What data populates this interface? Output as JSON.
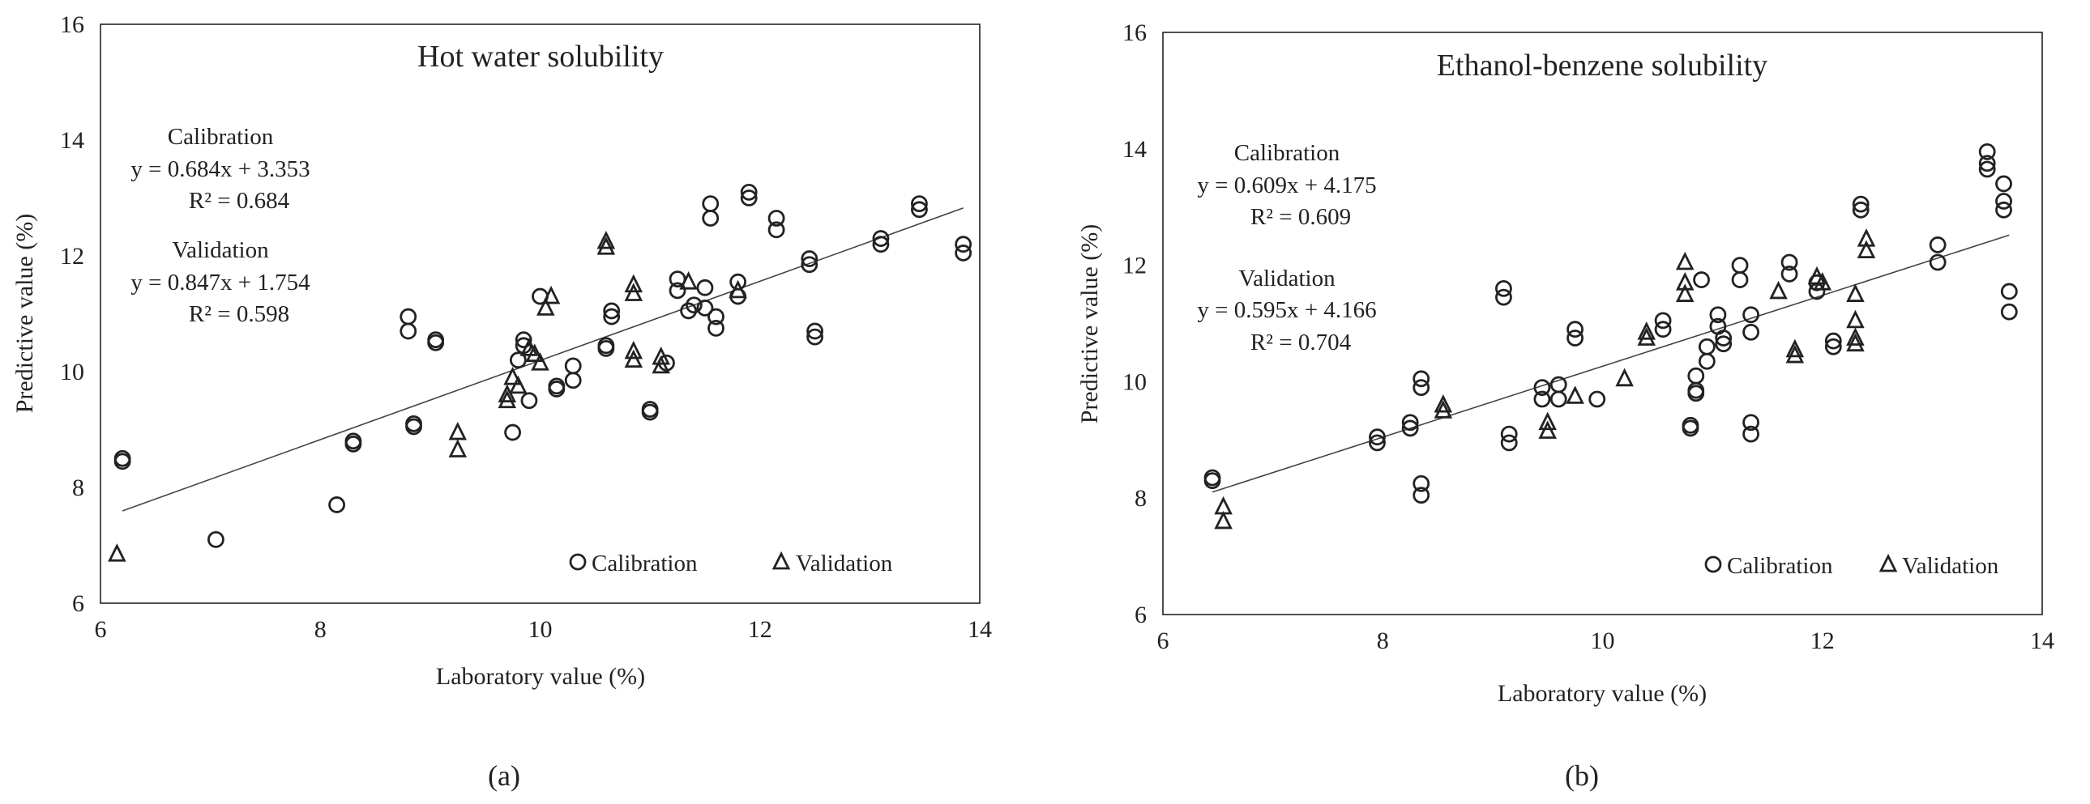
{
  "figure_labels": [
    "(a)",
    "(b)"
  ],
  "chart_data": [
    {
      "type": "scatter",
      "title": "Hot water solubility",
      "xlabel": "Laboratory value (%)",
      "ylabel": "Predictive value (%)",
      "xlim": [
        6,
        14
      ],
      "ylim": [
        6,
        16
      ],
      "xticks": [
        6,
        8,
        10,
        12,
        14
      ],
      "yticks": [
        6,
        8,
        10,
        12,
        14,
        16
      ],
      "legend": {
        "position": "bottom-right",
        "entries": [
          "Calibration",
          "Validation"
        ]
      },
      "annotations": {
        "calibration": [
          "Calibration",
          "y = 0.684x + 3.353",
          "R² = 0.684"
        ],
        "validation": [
          "Validation",
          "y = 0.847x + 1.754",
          "R² = 0.598"
        ]
      },
      "trendline": {
        "slope": 0.684,
        "intercept": 3.353,
        "x_range": [
          6.2,
          13.85
        ]
      },
      "series": [
        {
          "name": "Calibration",
          "marker": "circle",
          "points": [
            [
              6.2,
              8.45
            ],
            [
              6.2,
              8.5
            ],
            [
              7.05,
              7.1
            ],
            [
              8.15,
              7.7
            ],
            [
              8.3,
              8.8
            ],
            [
              8.3,
              8.75
            ],
            [
              8.8,
              10.95
            ],
            [
              8.8,
              10.7
            ],
            [
              8.85,
              9.1
            ],
            [
              8.85,
              9.05
            ],
            [
              9.05,
              10.55
            ],
            [
              9.05,
              10.5
            ],
            [
              9.75,
              8.95
            ],
            [
              9.8,
              10.2
            ],
            [
              9.85,
              10.55
            ],
            [
              9.85,
              10.45
            ],
            [
              9.9,
              9.5
            ],
            [
              10.0,
              11.3
            ],
            [
              10.15,
              9.75
            ],
            [
              10.15,
              9.7
            ],
            [
              10.3,
              10.1
            ],
            [
              10.3,
              9.85
            ],
            [
              10.6,
              10.45
            ],
            [
              10.6,
              10.4
            ],
            [
              10.65,
              11.05
            ],
            [
              10.65,
              10.95
            ],
            [
              11.0,
              9.35
            ],
            [
              11.0,
              9.3
            ],
            [
              11.15,
              10.15
            ],
            [
              11.25,
              11.6
            ],
            [
              11.25,
              11.4
            ],
            [
              11.35,
              11.05
            ],
            [
              11.4,
              11.15
            ],
            [
              11.5,
              11.1
            ],
            [
              11.5,
              11.45
            ],
            [
              11.55,
              12.9
            ],
            [
              11.55,
              12.65
            ],
            [
              11.6,
              10.95
            ],
            [
              11.6,
              10.75
            ],
            [
              11.8,
              11.55
            ],
            [
              11.8,
              11.3
            ],
            [
              11.9,
              13.1
            ],
            [
              11.9,
              13.0
            ],
            [
              12.15,
              12.65
            ],
            [
              12.15,
              12.45
            ],
            [
              12.45,
              11.95
            ],
            [
              12.45,
              11.85
            ],
            [
              12.5,
              10.7
            ],
            [
              12.5,
              10.6
            ],
            [
              13.1,
              12.3
            ],
            [
              13.1,
              12.2
            ],
            [
              13.45,
              12.9
            ],
            [
              13.45,
              12.8
            ],
            [
              13.85,
              12.2
            ],
            [
              13.85,
              12.05
            ]
          ]
        },
        {
          "name": "Validation",
          "marker": "triangle",
          "points": [
            [
              6.15,
              6.85
            ],
            [
              9.25,
              8.95
            ],
            [
              9.25,
              8.65
            ],
            [
              9.7,
              9.6
            ],
            [
              9.7,
              9.5
            ],
            [
              9.75,
              9.9
            ],
            [
              9.8,
              9.75
            ],
            [
              9.9,
              10.4
            ],
            [
              9.95,
              10.3
            ],
            [
              10.0,
              10.15
            ],
            [
              10.05,
              11.1
            ],
            [
              10.1,
              11.3
            ],
            [
              10.6,
              12.25
            ],
            [
              10.6,
              12.15
            ],
            [
              10.85,
              11.5
            ],
            [
              10.85,
              11.35
            ],
            [
              10.85,
              10.35
            ],
            [
              10.85,
              10.2
            ],
            [
              11.1,
              10.25
            ],
            [
              11.1,
              10.1
            ],
            [
              11.35,
              11.55
            ],
            [
              11.8,
              11.4
            ]
          ]
        }
      ]
    },
    {
      "type": "scatter",
      "title": "Ethanol-benzene solubility",
      "xlabel": "Laboratory value (%)",
      "ylabel": "Predictive value (%)",
      "xlim": [
        6,
        14
      ],
      "ylim": [
        6,
        16
      ],
      "xticks": [
        6,
        8,
        10,
        12,
        14
      ],
      "yticks": [
        6,
        8,
        10,
        12,
        14,
        16
      ],
      "legend": {
        "position": "bottom-right",
        "entries": [
          "Calibration",
          "Validation"
        ]
      },
      "annotations": {
        "calibration": [
          "Calibration",
          "y = 0.609x + 4.175",
          "R² = 0.609"
        ],
        "validation": [
          "Validation",
          "y = 0.595x + 4.166",
          "R² = 0.704"
        ]
      },
      "trendline": {
        "slope": 0.609,
        "intercept": 4.175,
        "x_range": [
          6.45,
          13.7
        ]
      },
      "series": [
        {
          "name": "Calibration",
          "marker": "circle",
          "points": [
            [
              6.45,
              8.35
            ],
            [
              6.45,
              8.3
            ],
            [
              7.95,
              9.05
            ],
            [
              7.95,
              8.95
            ],
            [
              8.25,
              9.3
            ],
            [
              8.25,
              9.2
            ],
            [
              8.35,
              10.05
            ],
            [
              8.35,
              9.9
            ],
            [
              8.35,
              8.25
            ],
            [
              8.35,
              8.05
            ],
            [
              9.1,
              11.6
            ],
            [
              9.1,
              11.45
            ],
            [
              9.15,
              9.1
            ],
            [
              9.15,
              8.95
            ],
            [
              9.45,
              9.9
            ],
            [
              9.45,
              9.7
            ],
            [
              9.6,
              9.95
            ],
            [
              9.6,
              9.7
            ],
            [
              9.75,
              10.9
            ],
            [
              9.75,
              10.75
            ],
            [
              9.95,
              9.7
            ],
            [
              10.55,
              11.05
            ],
            [
              10.55,
              10.9
            ],
            [
              10.8,
              9.25
            ],
            [
              10.8,
              9.2
            ],
            [
              10.85,
              10.1
            ],
            [
              10.85,
              9.85
            ],
            [
              10.85,
              9.8
            ],
            [
              10.9,
              11.75
            ],
            [
              10.95,
              10.6
            ],
            [
              10.95,
              10.35
            ],
            [
              11.05,
              11.15
            ],
            [
              11.05,
              10.95
            ],
            [
              11.1,
              10.75
            ],
            [
              11.1,
              10.65
            ],
            [
              11.25,
              12.0
            ],
            [
              11.25,
              11.75
            ],
            [
              11.35,
              11.15
            ],
            [
              11.35,
              10.85
            ],
            [
              11.35,
              9.3
            ],
            [
              11.35,
              9.1
            ],
            [
              11.7,
              12.05
            ],
            [
              11.7,
              11.85
            ],
            [
              11.95,
              11.7
            ],
            [
              11.95,
              11.55
            ],
            [
              12.1,
              10.7
            ],
            [
              12.1,
              10.6
            ],
            [
              12.35,
              13.05
            ],
            [
              12.35,
              12.95
            ],
            [
              13.05,
              12.35
            ],
            [
              13.05,
              12.05
            ],
            [
              13.5,
              13.95
            ],
            [
              13.5,
              13.75
            ],
            [
              13.5,
              13.65
            ],
            [
              13.65,
              13.4
            ],
            [
              13.65,
              13.1
            ],
            [
              13.65,
              12.95
            ],
            [
              13.7,
              11.55
            ],
            [
              13.7,
              11.2
            ]
          ]
        },
        {
          "name": "Validation",
          "marker": "triangle",
          "points": [
            [
              6.55,
              7.85
            ],
            [
              6.55,
              7.6
            ],
            [
              8.55,
              9.6
            ],
            [
              8.55,
              9.5
            ],
            [
              9.5,
              9.3
            ],
            [
              9.5,
              9.15
            ],
            [
              9.75,
              9.75
            ],
            [
              10.2,
              10.05
            ],
            [
              10.4,
              10.85
            ],
            [
              10.4,
              10.75
            ],
            [
              10.75,
              12.05
            ],
            [
              10.75,
              11.7
            ],
            [
              10.75,
              11.5
            ],
            [
              11.6,
              11.55
            ],
            [
              11.75,
              10.55
            ],
            [
              11.75,
              10.45
            ],
            [
              11.95,
              11.8
            ],
            [
              12.0,
              11.7
            ],
            [
              12.3,
              11.5
            ],
            [
              12.3,
              11.05
            ],
            [
              12.3,
              10.75
            ],
            [
              12.3,
              10.65
            ],
            [
              12.4,
              12.45
            ],
            [
              12.4,
              12.25
            ]
          ]
        }
      ]
    }
  ]
}
